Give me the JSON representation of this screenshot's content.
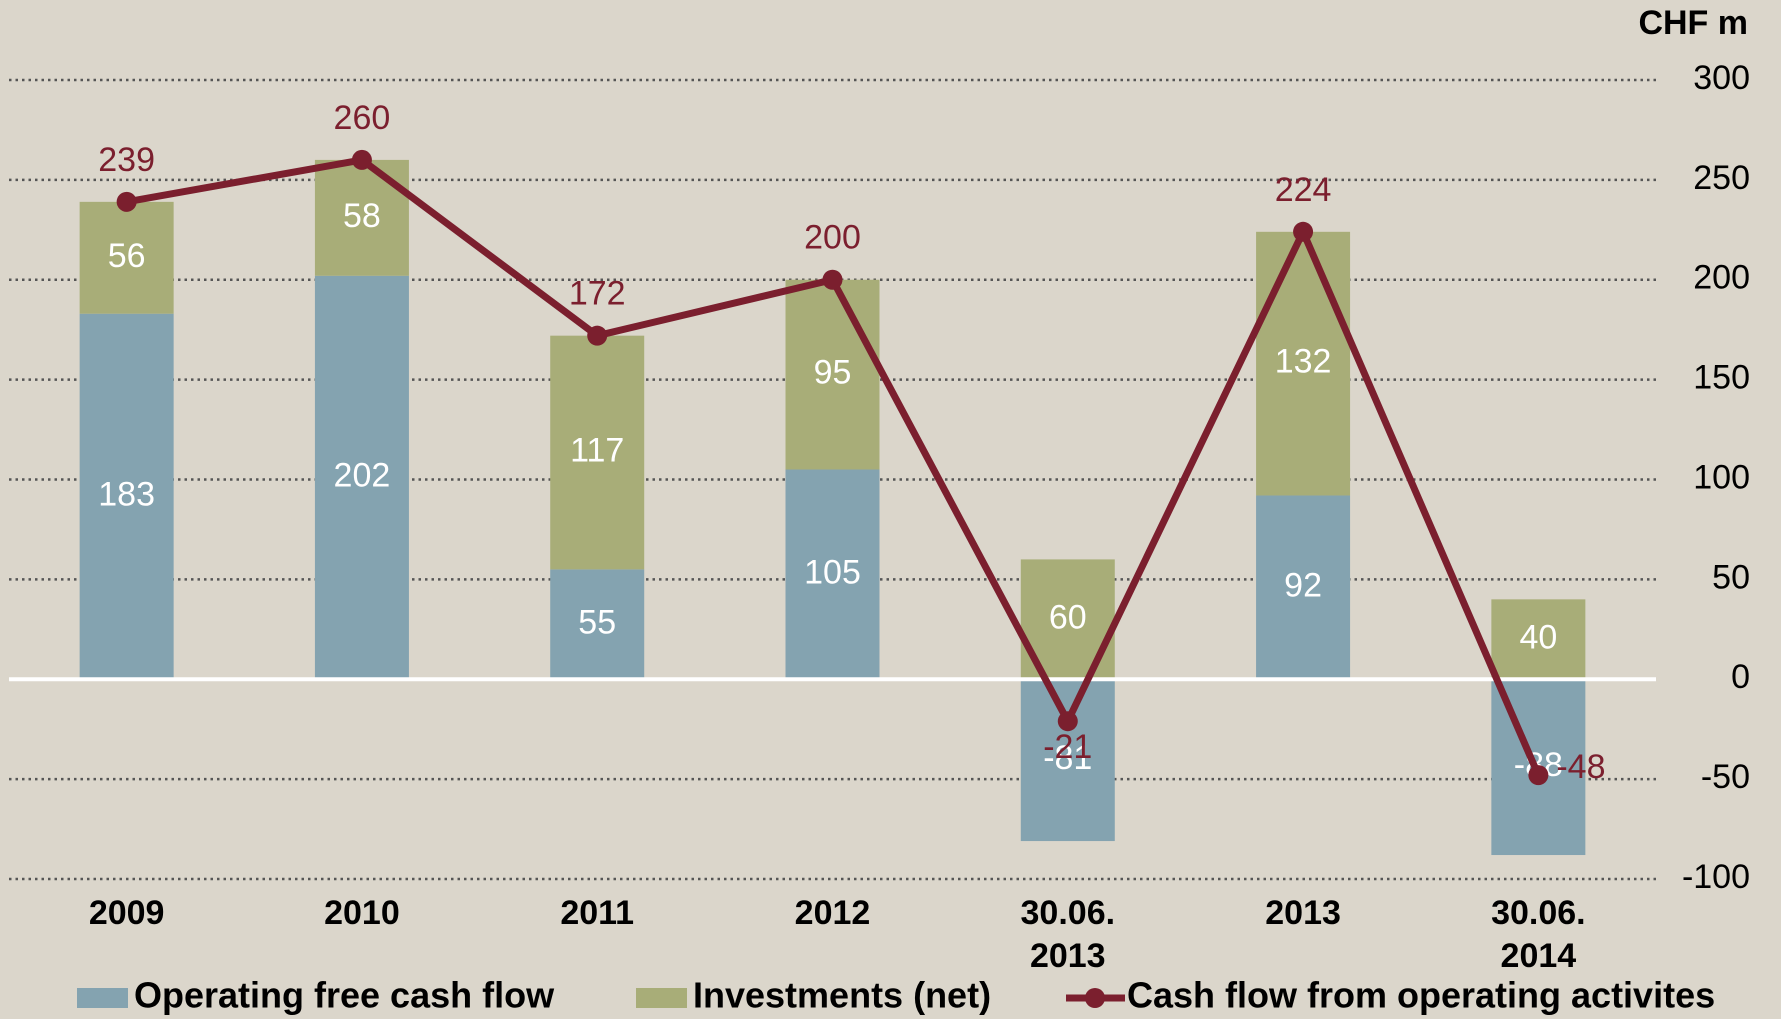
{
  "chart_data": {
    "type": "bar",
    "unit_label": "CHF m",
    "categories": [
      "2009",
      "2010",
      "2011",
      "2012",
      "30.06. 2013",
      "2013",
      "30.06. 2014"
    ],
    "series": [
      {
        "name": "Operating free cash flow",
        "color": "#84a3b0",
        "values": [
          183,
          202,
          55,
          105,
          -81,
          92,
          -88
        ]
      },
      {
        "name": "Investments (net)",
        "color": "#a8ad78",
        "values": [
          56,
          58,
          117,
          95,
          60,
          132,
          40
        ]
      },
      {
        "name": "Cash flow from operating activites",
        "type": "line",
        "color": "#7b1f2e",
        "values": [
          239,
          260,
          172,
          200,
          -21,
          224,
          -48
        ]
      }
    ],
    "ylim": [
      -100,
      300
    ],
    "yticks": [
      -100,
      -50,
      0,
      50,
      100,
      150,
      200,
      250,
      300
    ],
    "grid": true,
    "stacked": true
  }
}
